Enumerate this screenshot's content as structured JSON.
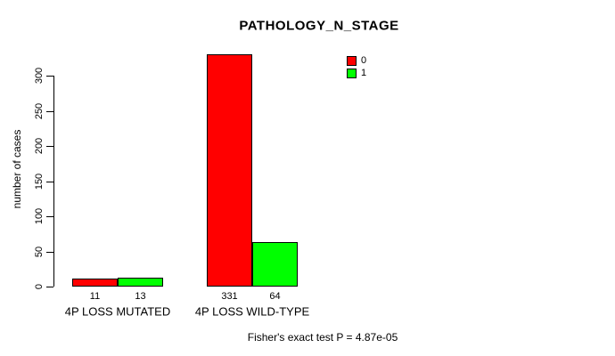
{
  "chart_data": {
    "type": "bar",
    "title": "PATHOLOGY_N_STAGE",
    "xlabel": "",
    "ylabel": "number of cases",
    "categories": [
      "4P LOSS MUTATED",
      "4P LOSS WILD-TYPE"
    ],
    "series": [
      {
        "name": "0",
        "color": "#ff0000",
        "values": [
          11,
          331
        ]
      },
      {
        "name": "1",
        "color": "#00ff00",
        "values": [
          13,
          64
        ]
      }
    ],
    "bar_value_labels": [
      [
        "11",
        "331"
      ],
      [
        "13",
        "64"
      ]
    ],
    "yticks": [
      0,
      50,
      100,
      150,
      200,
      250,
      300
    ],
    "ylim": [
      0,
      340
    ],
    "grid": false,
    "legend_position": "top-right",
    "annotation": "Fisher's exact test P = 4.87e-05"
  },
  "colors": {
    "series_0": "#ff0000",
    "series_1": "#00ff00",
    "axis": "#000000",
    "background": "#ffffff",
    "text": "#000000"
  }
}
